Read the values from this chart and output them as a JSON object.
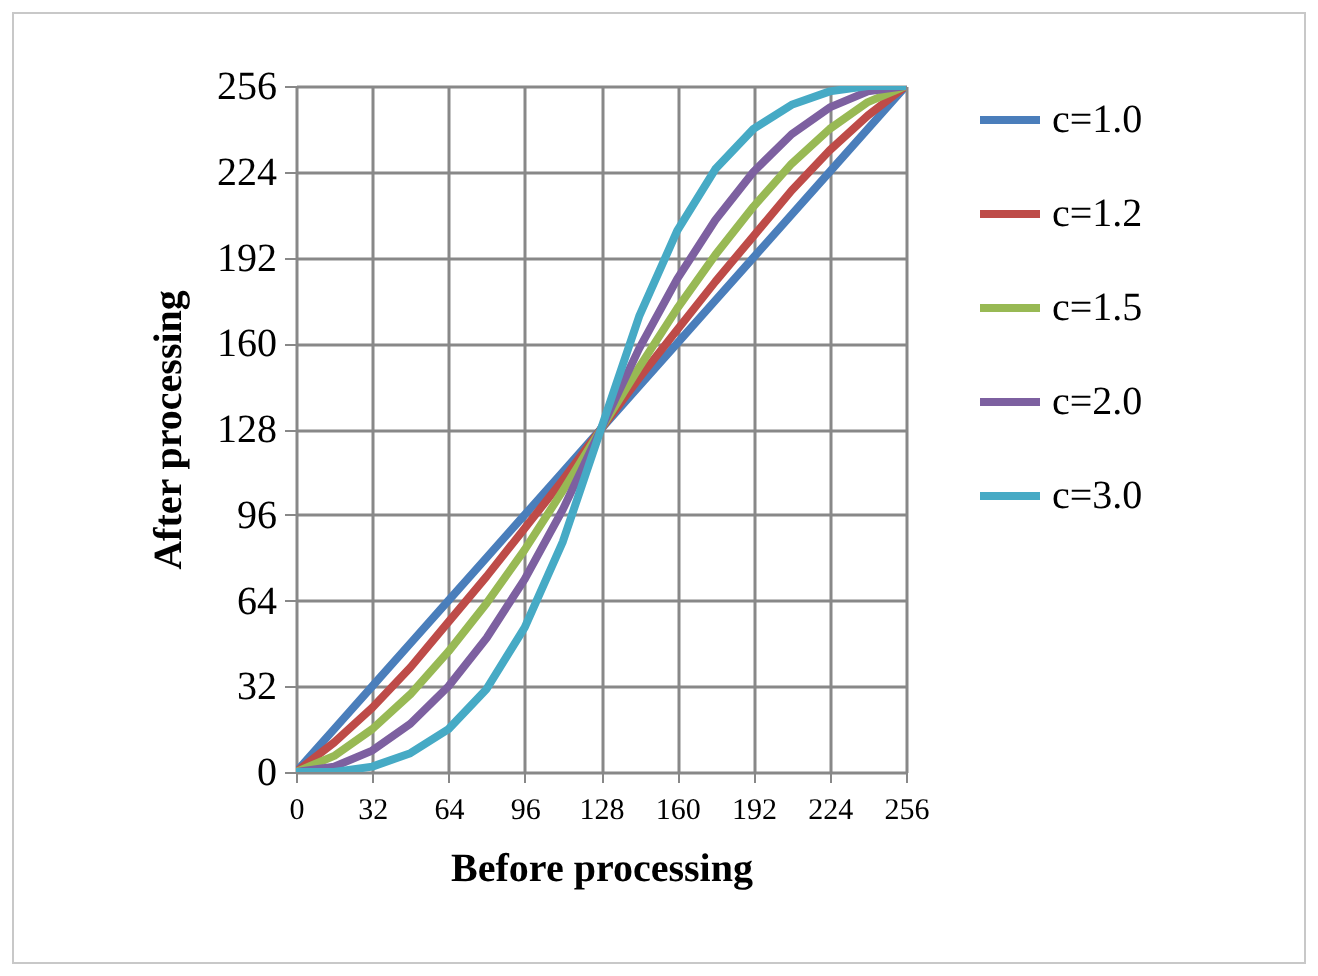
{
  "chart_data": {
    "type": "line",
    "xlabel": "Before processing",
    "ylabel": "After processing",
    "x": [
      0,
      16,
      32,
      48,
      64,
      80,
      96,
      112,
      128,
      144,
      160,
      176,
      192,
      208,
      224,
      240,
      256
    ],
    "series": [
      {
        "name": "c=1.0",
        "color": "#4a7ebb",
        "values": [
          0,
          16,
          32,
          48,
          64,
          80,
          96,
          112,
          128,
          144,
          160,
          176,
          192,
          208,
          224,
          240,
          256
        ]
      },
      {
        "name": "c=1.2",
        "color": "#be4b48",
        "values": [
          0,
          11,
          24,
          39,
          56,
          73,
          91,
          109,
          128,
          147,
          165,
          183,
          200,
          217,
          232,
          245,
          256
        ]
      },
      {
        "name": "c=1.5",
        "color": "#98b954",
        "values": [
          0,
          6,
          16,
          29,
          45,
          63,
          83,
          105,
          128,
          151,
          173,
          193,
          211,
          227,
          240,
          250,
          256
        ]
      },
      {
        "name": "c=2.0",
        "color": "#7d60a0",
        "values": [
          0,
          2,
          8,
          18,
          32,
          50,
          72,
          98,
          128,
          158,
          184,
          206,
          224,
          238,
          248,
          254,
          256
        ]
      },
      {
        "name": "c=3.0",
        "color": "#46aac5",
        "values": [
          0,
          0,
          2,
          7,
          16,
          31,
          54,
          86,
          128,
          170,
          202,
          225,
          240,
          249,
          254,
          256,
          256
        ]
      }
    ],
    "xlim": [
      0,
      256
    ],
    "xticks": [
      0,
      32,
      64,
      96,
      128,
      160,
      192,
      224,
      256
    ],
    "ylim": [
      0,
      256
    ],
    "yticks": [
      0,
      32,
      64,
      96,
      128,
      160,
      192,
      224,
      256
    ],
    "grid": true,
    "legend": "right"
  }
}
